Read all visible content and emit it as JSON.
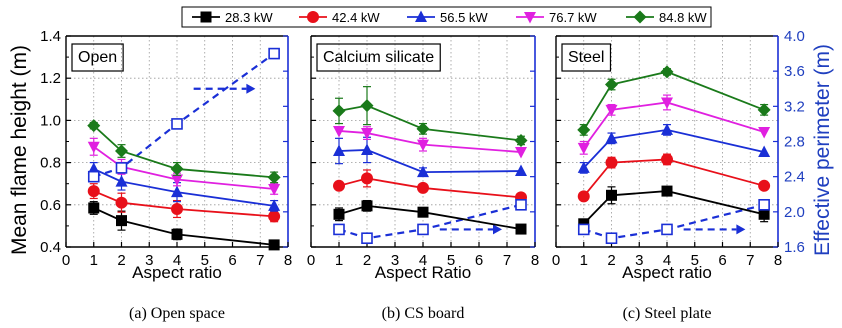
{
  "figure": {
    "y_left_label": "Mean flame height (m)",
    "y_right_label": "Effective perimeter (m)",
    "legend": [
      "28.3 kW",
      "42.4 kW",
      "56.5 kW",
      "76.7 kW",
      "84.8 kW"
    ]
  },
  "chart_data": [
    {
      "type": "line",
      "panel_label": "Open",
      "caption": "(a) Open space",
      "xlabel": "Aspect ratio",
      "ylabel": "Mean flame height (m)",
      "y2label": "Effective perimeter (m)",
      "xlim": [
        0,
        8
      ],
      "ylim": [
        0.4,
        1.4
      ],
      "y2lim": [
        1.6,
        4.0
      ],
      "x": [
        1,
        2,
        4,
        7.5
      ],
      "series": [
        {
          "name": "28.3 kW",
          "color": "#000000",
          "marker": "square",
          "values": [
            0.585,
            0.525,
            0.46,
            0.41
          ],
          "errors": [
            0.03,
            0.045,
            0.025,
            0.0
          ]
        },
        {
          "name": "42.4 kW",
          "color": "#e8101a",
          "marker": "circle",
          "values": [
            0.665,
            0.61,
            0.58,
            0.545
          ],
          "errors": [
            0.035,
            0.045,
            0.04,
            0.025
          ]
        },
        {
          "name": "56.5 kW",
          "color": "#1a2fd6",
          "marker": "triangle-up",
          "values": [
            0.77,
            0.71,
            0.66,
            0.595
          ],
          "errors": [
            0.03,
            0.04,
            0.045,
            0.025
          ]
        },
        {
          "name": "76.7 kW",
          "color": "#e020e0",
          "marker": "triangle-down",
          "values": [
            0.875,
            0.78,
            0.72,
            0.675
          ],
          "errors": [
            0.04,
            0.035,
            0.03,
            0.025
          ]
        },
        {
          "name": "84.8 kW",
          "color": "#1a7a1a",
          "marker": "diamond",
          "values": [
            0.975,
            0.855,
            0.77,
            0.73
          ],
          "errors": [
            0.015,
            0.03,
            0.03,
            0.025
          ]
        }
      ],
      "effective_perimeter": {
        "values": [
          2.4,
          2.5,
          3.0,
          3.8
        ],
        "color": "#1a2fd6",
        "marker": "open-square"
      }
    },
    {
      "type": "line",
      "panel_label": "Calcium silicate",
      "caption": "(b) CS board",
      "xlabel": "Aspect Ratio",
      "ylabel": "Mean flame height (m)",
      "y2label": "Effective perimeter (m)",
      "xlim": [
        0,
        8
      ],
      "ylim": [
        0.4,
        1.4
      ],
      "y2lim": [
        1.6,
        4.0
      ],
      "x": [
        1,
        2,
        4,
        7.5
      ],
      "series": [
        {
          "name": "28.3 kW",
          "color": "#000000",
          "marker": "square",
          "values": [
            0.555,
            0.595,
            0.565,
            0.485
          ],
          "errors": [
            0.03,
            0.025,
            0.0,
            0.02
          ]
        },
        {
          "name": "42.4 kW",
          "color": "#e8101a",
          "marker": "circle",
          "values": [
            0.69,
            0.725,
            0.68,
            0.635
          ],
          "errors": [
            0.0,
            0.04,
            0.0,
            0.0
          ]
        },
        {
          "name": "56.5 kW",
          "color": "#1a2fd6",
          "marker": "triangle-up",
          "values": [
            0.855,
            0.86,
            0.755,
            0.76
          ],
          "errors": [
            0.06,
            0.06,
            0.02,
            0.0
          ]
        },
        {
          "name": "76.7 kW",
          "color": "#e020e0",
          "marker": "triangle-down",
          "values": [
            0.95,
            0.94,
            0.885,
            0.85
          ],
          "errors": [
            0.0,
            0.03,
            0.03,
            0.0
          ]
        },
        {
          "name": "84.8 kW",
          "color": "#1a7a1a",
          "marker": "diamond",
          "values": [
            1.045,
            1.07,
            0.96,
            0.905
          ],
          "errors": [
            0.06,
            0.09,
            0.025,
            0.02
          ]
        }
      ],
      "effective_perimeter": {
        "values": [
          1.8,
          1.7,
          1.8,
          2.08
        ],
        "color": "#1a2fd6",
        "marker": "open-square"
      }
    },
    {
      "type": "line",
      "panel_label": "Steel",
      "caption": "(c) Steel plate",
      "xlabel": "Aspect ratio",
      "ylabel": "Mean flame height (m)",
      "y2label": "Effective perimeter (m)",
      "xlim": [
        0,
        8
      ],
      "ylim": [
        0.4,
        1.4
      ],
      "y2lim": [
        1.6,
        4.0
      ],
      "x": [
        1,
        2,
        4,
        7.5
      ],
      "series": [
        {
          "name": "28.3 kW",
          "color": "#000000",
          "marker": "square",
          "values": [
            0.51,
            0.645,
            0.665,
            0.555
          ],
          "errors": [
            0.02,
            0.04,
            0.0,
            0.035
          ]
        },
        {
          "name": "42.4 kW",
          "color": "#e8101a",
          "marker": "circle",
          "values": [
            0.64,
            0.8,
            0.815,
            0.69
          ],
          "errors": [
            0.0,
            0.025,
            0.025,
            0.0
          ]
        },
        {
          "name": "56.5 kW",
          "color": "#1a2fd6",
          "marker": "triangle-up",
          "values": [
            0.775,
            0.915,
            0.955,
            0.85
          ],
          "errors": [
            0.025,
            0.025,
            0.025,
            0.0
          ]
        },
        {
          "name": "76.7 kW",
          "color": "#e020e0",
          "marker": "triangle-down",
          "values": [
            0.87,
            1.05,
            1.085,
            0.945
          ],
          "errors": [
            0.03,
            0.025,
            0.035,
            0.0
          ]
        },
        {
          "name": "84.8 kW",
          "color": "#1a7a1a",
          "marker": "diamond",
          "values": [
            0.955,
            1.17,
            1.23,
            1.05
          ],
          "errors": [
            0.025,
            0.025,
            0.015,
            0.025
          ]
        }
      ],
      "effective_perimeter": {
        "values": [
          1.8,
          1.7,
          1.8,
          2.08
        ],
        "color": "#1a2fd6",
        "marker": "open-square"
      }
    }
  ]
}
